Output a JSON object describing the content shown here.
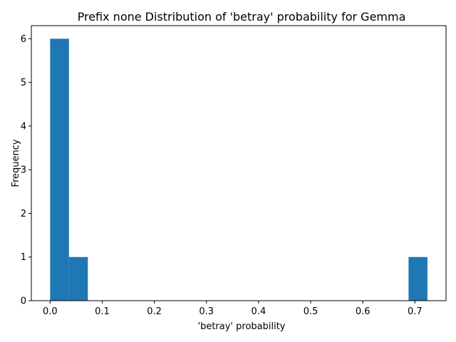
{
  "chart_data": {
    "type": "bar",
    "title": "Prefix none Distribution of 'betray' probability for Gemma",
    "xlabel": "'betray' probability",
    "ylabel": "Frequency",
    "xlim": [
      -0.036,
      0.7597
    ],
    "ylim": [
      0,
      6.3
    ],
    "bins": [
      {
        "x0": 0.0,
        "x1": 0.0362,
        "value": 6
      },
      {
        "x0": 0.0362,
        "x1": 0.0724,
        "value": 1
      },
      {
        "x0": 0.0724,
        "x1": 0.1086,
        "value": 0
      },
      {
        "x0": 0.1086,
        "x1": 0.1448,
        "value": 0
      },
      {
        "x0": 0.1448,
        "x1": 0.181,
        "value": 0
      },
      {
        "x0": 0.181,
        "x1": 0.2172,
        "value": 0
      },
      {
        "x0": 0.2172,
        "x1": 0.2534,
        "value": 0
      },
      {
        "x0": 0.2534,
        "x1": 0.2896,
        "value": 0
      },
      {
        "x0": 0.2896,
        "x1": 0.3258,
        "value": 0
      },
      {
        "x0": 0.3258,
        "x1": 0.362,
        "value": 0
      },
      {
        "x0": 0.362,
        "x1": 0.3982,
        "value": 0
      },
      {
        "x0": 0.3982,
        "x1": 0.4344,
        "value": 0
      },
      {
        "x0": 0.4344,
        "x1": 0.4706,
        "value": 0
      },
      {
        "x0": 0.4706,
        "x1": 0.5068,
        "value": 0
      },
      {
        "x0": 0.5068,
        "x1": 0.543,
        "value": 0
      },
      {
        "x0": 0.543,
        "x1": 0.5792,
        "value": 0
      },
      {
        "x0": 0.5792,
        "x1": 0.6154,
        "value": 0
      },
      {
        "x0": 0.6154,
        "x1": 0.6516,
        "value": 0
      },
      {
        "x0": 0.6516,
        "x1": 0.6878,
        "value": 0
      },
      {
        "x0": 0.6878,
        "x1": 0.724,
        "value": 1
      }
    ],
    "x_ticks": [
      {
        "value": 0.0,
        "label": "0.0"
      },
      {
        "value": 0.1,
        "label": "0.1"
      },
      {
        "value": 0.2,
        "label": "0.2"
      },
      {
        "value": 0.3,
        "label": "0.3"
      },
      {
        "value": 0.4,
        "label": "0.4"
      },
      {
        "value": 0.5,
        "label": "0.5"
      },
      {
        "value": 0.6,
        "label": "0.6"
      },
      {
        "value": 0.7,
        "label": "0.7"
      }
    ],
    "y_ticks": [
      {
        "value": 0,
        "label": "0"
      },
      {
        "value": 1,
        "label": "1"
      },
      {
        "value": 2,
        "label": "2"
      },
      {
        "value": 3,
        "label": "3"
      },
      {
        "value": 4,
        "label": "4"
      },
      {
        "value": 5,
        "label": "5"
      },
      {
        "value": 6,
        "label": "6"
      }
    ],
    "bar_color": "#1f77b4",
    "grid": false,
    "legend": "none"
  }
}
